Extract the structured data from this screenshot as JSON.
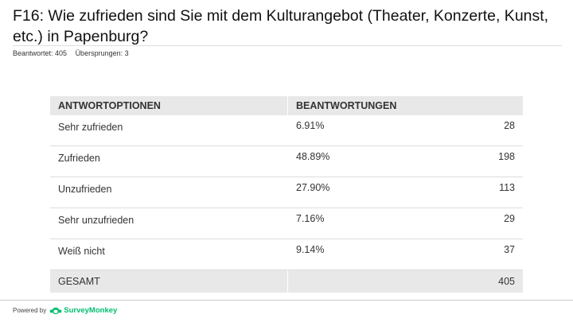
{
  "title": "F16: Wie zufrieden sind Sie mit dem Kulturangebot (Theater, Konzerte, Kunst, etc.) in Papenburg?",
  "meta": {
    "answered": "Beantwortet: 405",
    "skipped": "Übersprungen: 3"
  },
  "table": {
    "headers": {
      "options": "ANTWORTOPTIONEN",
      "responses": "BEANTWORTUNGEN"
    },
    "rows": [
      {
        "label": "Sehr zufrieden",
        "percent": "6.91%",
        "count": "28"
      },
      {
        "label": "Zufrieden",
        "percent": "48.89%",
        "count": "198"
      },
      {
        "label": "Unzufrieden",
        "percent": "27.90%",
        "count": "113"
      },
      {
        "label": "Sehr unzufrieden",
        "percent": "7.16%",
        "count": "29"
      },
      {
        "label": "Weiß nicht",
        "percent": "9.14%",
        "count": "37"
      }
    ],
    "total": {
      "label": "GESAMT",
      "count": "405"
    }
  },
  "footer": {
    "powered_by": "Powered by",
    "brand": "SurveyMonkey",
    "brand_icon": "surveymonkey-logo-icon",
    "brand_color": "#00bf6f"
  }
}
